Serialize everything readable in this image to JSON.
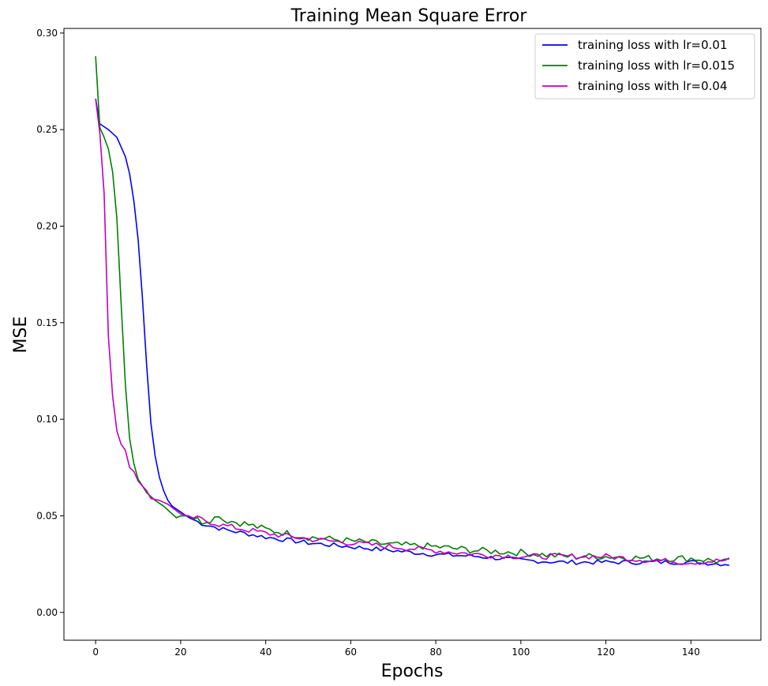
{
  "chart_data": {
    "type": "line",
    "title": "Training Mean Square Error",
    "xlabel": "Epochs",
    "ylabel": "MSE",
    "xlim": [
      -7.45,
      156.45
    ],
    "ylim": [
      -0.0144,
      0.3024
    ],
    "xticks": [
      0,
      20,
      40,
      60,
      80,
      100,
      120,
      140
    ],
    "yticks": [
      0.0,
      0.05,
      0.1,
      0.15,
      0.2,
      0.25,
      0.3
    ],
    "ytick_labels": [
      "0.00",
      "0.05",
      "0.10",
      "0.15",
      "0.20",
      "0.25",
      "0.30"
    ],
    "grid": false,
    "legend_position": "top-right",
    "series": [
      {
        "name": "training loss with lr=0.01",
        "color": "#0000ff",
        "keypoints": [
          [
            0,
            0.266
          ],
          [
            1,
            0.253
          ],
          [
            3,
            0.25
          ],
          [
            5,
            0.246
          ],
          [
            7,
            0.236
          ],
          [
            8,
            0.227
          ],
          [
            9,
            0.213
          ],
          [
            10,
            0.193
          ],
          [
            11,
            0.163
          ],
          [
            12,
            0.128
          ],
          [
            13,
            0.098
          ],
          [
            14,
            0.081
          ],
          [
            15,
            0.07
          ],
          [
            16,
            0.063
          ],
          [
            17,
            0.058
          ],
          [
            18,
            0.055
          ],
          [
            20,
            0.052
          ],
          [
            22,
            0.049
          ],
          [
            25,
            0.046
          ],
          [
            30,
            0.043
          ],
          [
            35,
            0.041
          ],
          [
            40,
            0.039
          ],
          [
            50,
            0.036
          ],
          [
            60,
            0.034
          ],
          [
            70,
            0.032
          ],
          [
            80,
            0.03
          ],
          [
            90,
            0.029
          ],
          [
            100,
            0.027
          ],
          [
            110,
            0.026
          ],
          [
            120,
            0.026
          ],
          [
            130,
            0.026
          ],
          [
            140,
            0.026
          ],
          [
            149,
            0.025
          ]
        ],
        "noise": 0.0012
      },
      {
        "name": "training loss with lr=0.015",
        "color": "#008000",
        "keypoints": [
          [
            0,
            0.288
          ],
          [
            1,
            0.251
          ],
          [
            2,
            0.246
          ],
          [
            3,
            0.24
          ],
          [
            4,
            0.228
          ],
          [
            5,
            0.204
          ],
          [
            6,
            0.16
          ],
          [
            7,
            0.118
          ],
          [
            8,
            0.09
          ],
          [
            9,
            0.077
          ],
          [
            10,
            0.069
          ],
          [
            12,
            0.062
          ],
          [
            14,
            0.058
          ],
          [
            16,
            0.055
          ],
          [
            18,
            0.051
          ],
          [
            19,
            0.049
          ],
          [
            20,
            0.05
          ],
          [
            22,
            0.05
          ],
          [
            25,
            0.047
          ],
          [
            28,
            0.049
          ],
          [
            29,
            0.051
          ],
          [
            30,
            0.048
          ],
          [
            35,
            0.046
          ],
          [
            40,
            0.043
          ],
          [
            50,
            0.039
          ],
          [
            60,
            0.037
          ],
          [
            70,
            0.035
          ],
          [
            80,
            0.034
          ],
          [
            90,
            0.032
          ],
          [
            100,
            0.031
          ],
          [
            110,
            0.029
          ],
          [
            120,
            0.029
          ],
          [
            130,
            0.028
          ],
          [
            140,
            0.028
          ],
          [
            149,
            0.026
          ]
        ],
        "noise": 0.0018
      },
      {
        "name": "training loss with lr=0.04",
        "color": "#bf00bf",
        "keypoints": [
          [
            0,
            0.266
          ],
          [
            1,
            0.248
          ],
          [
            2,
            0.217
          ],
          [
            3,
            0.143
          ],
          [
            4,
            0.112
          ],
          [
            5,
            0.094
          ],
          [
            6,
            0.087
          ],
          [
            7,
            0.084
          ],
          [
            8,
            0.075
          ],
          [
            9,
            0.073
          ],
          [
            10,
            0.068
          ],
          [
            12,
            0.063
          ],
          [
            13,
            0.059
          ],
          [
            15,
            0.058
          ],
          [
            17,
            0.056
          ],
          [
            20,
            0.051
          ],
          [
            25,
            0.048
          ],
          [
            30,
            0.045
          ],
          [
            35,
            0.043
          ],
          [
            40,
            0.041
          ],
          [
            50,
            0.038
          ],
          [
            60,
            0.036
          ],
          [
            70,
            0.034
          ],
          [
            80,
            0.032
          ],
          [
            90,
            0.03
          ],
          [
            100,
            0.029
          ],
          [
            110,
            0.029
          ],
          [
            120,
            0.029
          ],
          [
            130,
            0.027
          ],
          [
            140,
            0.026
          ],
          [
            149,
            0.027
          ]
        ],
        "noise": 0.0015
      }
    ]
  }
}
